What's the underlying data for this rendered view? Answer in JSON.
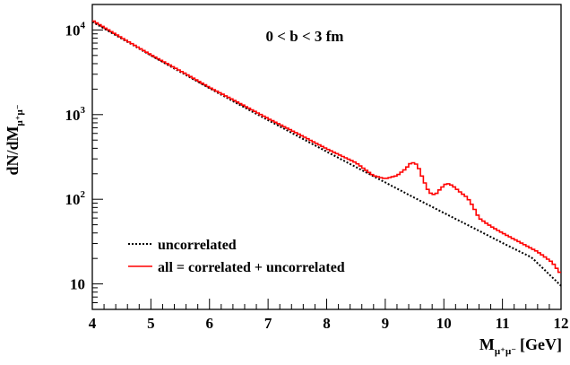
{
  "chart_data": {
    "type": "line",
    "annotation": "0 < b < 3 fm",
    "xlabel": {
      "main": "M",
      "sub": "μ⁺μ⁻",
      "unit": "[GeV]"
    },
    "ylabel": {
      "main": "dN/dM",
      "sub": "μ⁺μ⁻"
    },
    "xlim": [
      4,
      12
    ],
    "ylim": [
      5,
      20000
    ],
    "yscale": "log",
    "x_ticks": [
      {
        "value": 4,
        "label": "4"
      },
      {
        "value": 5,
        "label": "5"
      },
      {
        "value": 6,
        "label": "6"
      },
      {
        "value": 7,
        "label": "7"
      },
      {
        "value": 8,
        "label": "8"
      },
      {
        "value": 9,
        "label": "9"
      },
      {
        "value": 10,
        "label": "10"
      },
      {
        "value": 11,
        "label": "11"
      },
      {
        "value": 12,
        "label": "12"
      }
    ],
    "y_ticks": [
      {
        "value": 10,
        "base": "10",
        "exp": ""
      },
      {
        "value": 100,
        "base": "10",
        "exp": "2"
      },
      {
        "value": 1000,
        "base": "10",
        "exp": "3"
      },
      {
        "value": 10000,
        "base": "10",
        "exp": "4"
      }
    ],
    "legend_position": "bottom-left",
    "series": [
      {
        "name": "uncorrelated",
        "color": "#000000",
        "style": "dotted",
        "points": [
          [
            4.0,
            12500
          ],
          [
            4.5,
            7900
          ],
          [
            5.0,
            5000
          ],
          [
            5.5,
            3200
          ],
          [
            6.0,
            2050
          ],
          [
            6.5,
            1320
          ],
          [
            7.0,
            860
          ],
          [
            7.5,
            560
          ],
          [
            8.0,
            365
          ],
          [
            8.5,
            240
          ],
          [
            9.0,
            158
          ],
          [
            9.5,
            104
          ],
          [
            10.0,
            69
          ],
          [
            10.5,
            46
          ],
          [
            11.0,
            30.5
          ],
          [
            11.5,
            20.5
          ],
          [
            12.0,
            9.5
          ]
        ]
      },
      {
        "name": "all = correlated + uncorrelated",
        "color": "#ff0000",
        "style": "step",
        "points": [
          [
            4.0,
            13000
          ],
          [
            4.5,
            8100
          ],
          [
            5.0,
            5100
          ],
          [
            5.5,
            3300
          ],
          [
            6.0,
            2100
          ],
          [
            6.5,
            1380
          ],
          [
            7.0,
            900
          ],
          [
            7.5,
            600
          ],
          [
            8.0,
            395
          ],
          [
            8.5,
            270
          ],
          [
            8.8,
            190
          ],
          [
            9.0,
            175
          ],
          [
            9.2,
            190
          ],
          [
            9.35,
            230
          ],
          [
            9.45,
            275
          ],
          [
            9.55,
            255
          ],
          [
            9.65,
            170
          ],
          [
            9.75,
            120
          ],
          [
            9.85,
            112
          ],
          [
            9.95,
            135
          ],
          [
            10.05,
            155
          ],
          [
            10.15,
            145
          ],
          [
            10.3,
            118
          ],
          [
            10.4,
            105
          ],
          [
            10.5,
            82
          ],
          [
            10.6,
            60
          ],
          [
            10.8,
            48
          ],
          [
            11.0,
            40
          ],
          [
            11.3,
            31
          ],
          [
            11.6,
            24
          ],
          [
            11.85,
            18
          ],
          [
            12.0,
            13
          ]
        ]
      }
    ]
  }
}
